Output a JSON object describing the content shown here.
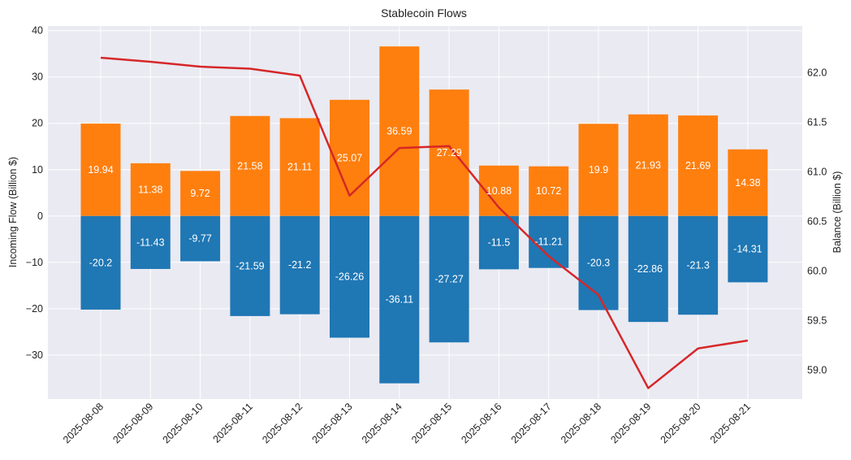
{
  "chart_data": {
    "type": "bar",
    "title": "Stablecoin Flows",
    "ylabel": "Incoming Flow (Billion $)",
    "ylabel_right": "Balance (Billion $)",
    "xlabel": "",
    "categories": [
      "2025-08-08",
      "2025-08-09",
      "2025-08-10",
      "2025-08-11",
      "2025-08-12",
      "2025-08-13",
      "2025-08-14",
      "2025-08-15",
      "2025-08-16",
      "2025-08-17",
      "2025-08-18",
      "2025-08-19",
      "2025-08-20",
      "2025-08-21"
    ],
    "series": [
      {
        "values": [
          19.94,
          11.38,
          9.72,
          21.58,
          21.11,
          25.07,
          36.59,
          27.29,
          10.88,
          10.72,
          19.9,
          21.93,
          21.69,
          14.38
        ],
        "color": "#ff7f0e",
        "labels": [
          "19.94",
          "11.38",
          "9.72",
          "21.58",
          "21.11",
          "25.07",
          "36.59",
          "27.29",
          "10.88",
          "10.72",
          "19.9",
          "21.93",
          "21.69",
          "14.38"
        ]
      },
      {
        "values": [
          -20.2,
          -11.43,
          -9.77,
          -21.59,
          -21.2,
          -26.26,
          -36.11,
          -27.27,
          -11.5,
          -11.21,
          -20.3,
          -22.86,
          -21.3,
          -14.31
        ],
        "color": "#1f77b4",
        "labels": [
          "-20.2",
          "-11.43",
          "-9.77",
          "-21.59",
          "-21.2",
          "-26.26",
          "-36.11",
          "-27.27",
          "-11.5",
          "-11.21",
          "-20.3",
          "-22.86",
          "-21.3",
          "-14.31"
        ]
      },
      {
        "type": "line",
        "axis": "right",
        "values": [
          62.15,
          62.11,
          62.06,
          62.04,
          61.97,
          60.76,
          61.24,
          61.26,
          60.64,
          60.15,
          59.76,
          58.82,
          59.22,
          59.3
        ],
        "color": "#d62728"
      }
    ],
    "ylim": [
      -39.5,
      41
    ],
    "ylim_right": [
      58.71,
      62.47
    ],
    "yticks": [
      -30,
      -20,
      -10,
      0,
      10,
      20,
      30,
      40
    ],
    "ytick_labels": [
      "−30",
      "−20",
      "−10",
      "0",
      "10",
      "20",
      "30",
      "40"
    ],
    "yticks_right": [
      59.0,
      59.5,
      60.0,
      60.5,
      61.0,
      61.5,
      62.0
    ],
    "ytick_labels_right": [
      "59.0",
      "59.5",
      "60.0",
      "60.5",
      "61.0",
      "61.5",
      "62.0"
    ],
    "grid": true,
    "background": "#eaeaf2"
  }
}
